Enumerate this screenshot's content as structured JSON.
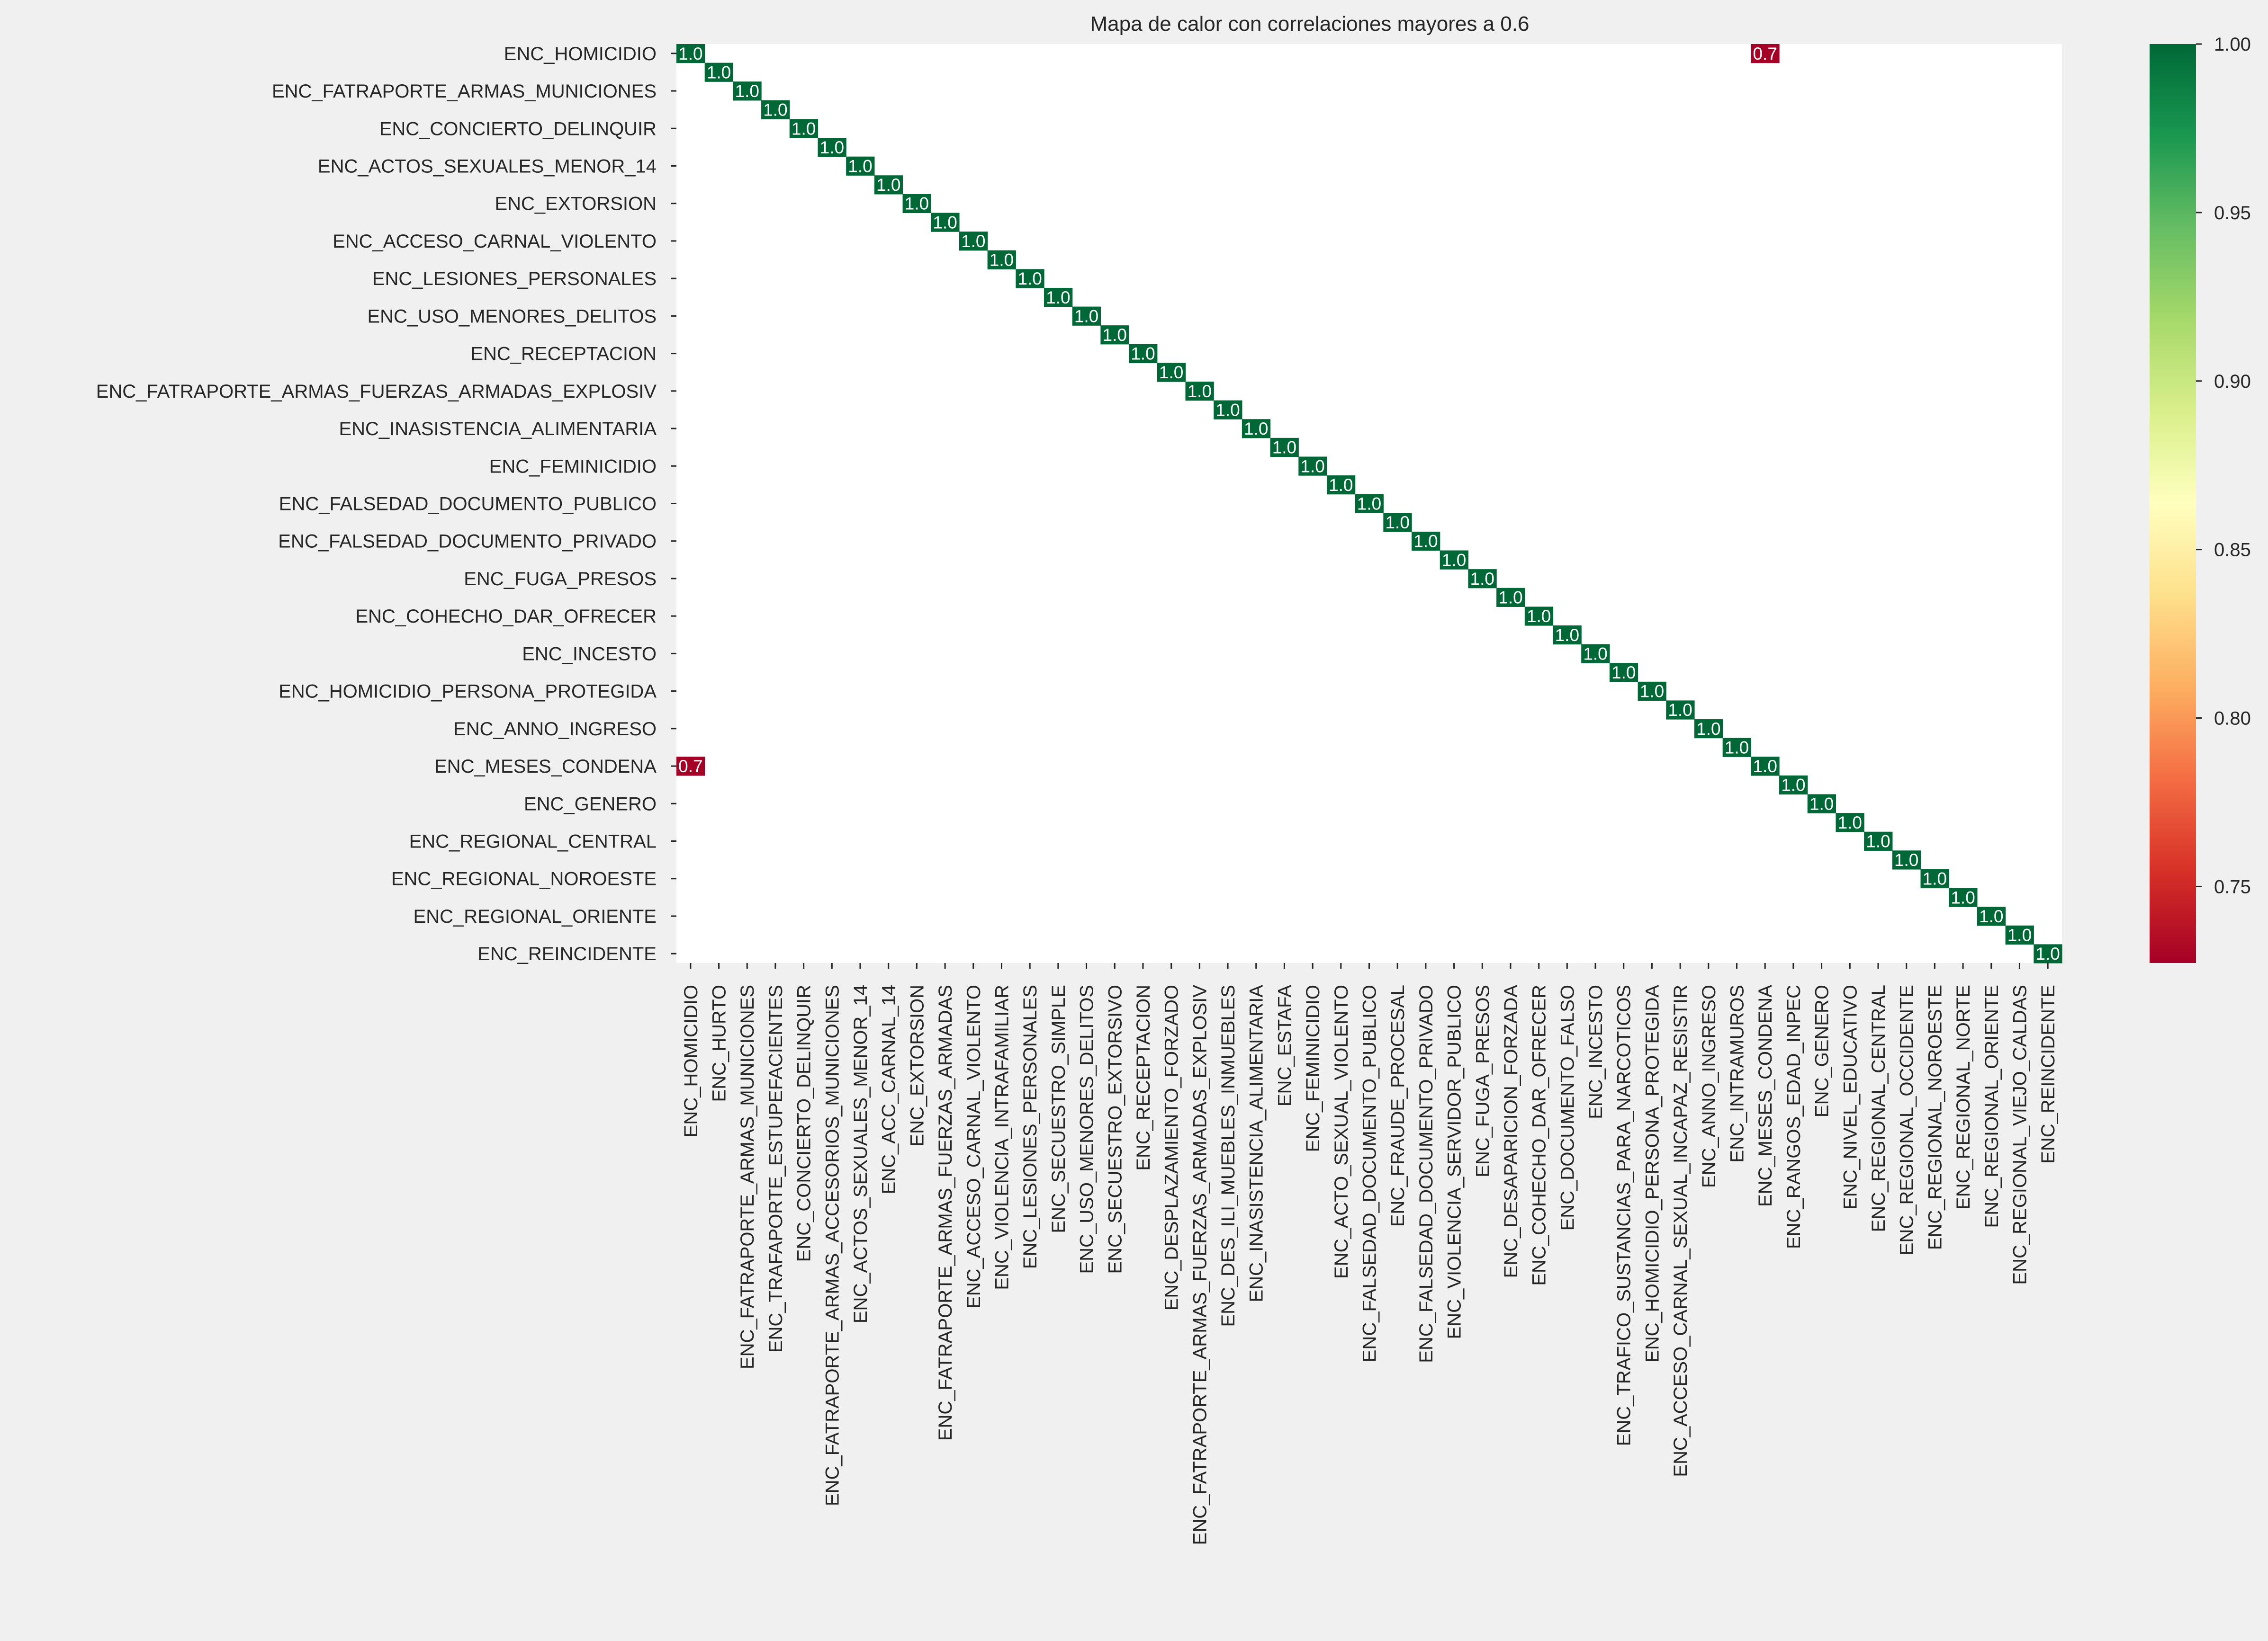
{
  "chart_data": {
    "type": "heatmap",
    "title": "Mapa de calor con correlaciones mayores a 0.6",
    "xlabel": "",
    "ylabel": "",
    "n": 49,
    "variables": [
      "ENC_HOMICIDIO",
      "ENC_HURTO",
      "ENC_FATRAPORTE_ARMAS_MUNICIONES",
      "ENC_TRAFAPORTE_ESTUPEFACIENTES",
      "ENC_CONCIERTO_DELINQUIR",
      "ENC_FATRAPORTE_ARMAS_ACCESORIOS_MUNICIONES",
      "ENC_ACTOS_SEXUALES_MENOR_14",
      "ENC_ACC_CARNAL_14",
      "ENC_EXTORSION",
      "ENC_FATRAPORTE_ARMAS_FUERZAS_ARMADAS",
      "ENC_ACCESO_CARNAL_VIOLENTO",
      "ENC_VIOLENCIA_INTRAFAMILIAR",
      "ENC_LESIONES_PERSONALES",
      "ENC_SECUESTRO_SIMPLE",
      "ENC_USO_MENORES_DELITOS",
      "ENC_SECUESTRO_EXTORSIVO",
      "ENC_RECEPTACION",
      "ENC_DESPLAZAMIENTO_FORZADO",
      "ENC_FATRAPORTE_ARMAS_FUERZAS_ARMADAS_EXPLOSIV",
      "ENC_DES_ILI_MUEBLES_INMUEBLES",
      "ENC_INASISTENCIA_ALIMENTARIA",
      "ENC_ESTAFA",
      "ENC_FEMINICIDIO",
      "ENC_ACTO_SEXUAL_VIOLENTO",
      "ENC_FALSEDAD_DOCUMENTO_PUBLICO",
      "ENC_FRAUDE_PROCESAL",
      "ENC_FALSEDAD_DOCUMENTO_PRIVADO",
      "ENC_VIOLENCIA_SERVIDOR_PUBLICO",
      "ENC_FUGA_PRESOS",
      "ENC_DESAPARICION_FORZADA",
      "ENC_COHECHO_DAR_OFRECER",
      "ENC_DOCUMENTO_FALSO",
      "ENC_INCESTO",
      "ENC_TRAFICO_SUSTANCIAS_PARA_NARCOTICOS",
      "ENC_HOMICIDIO_PERSONA_PROTEGIDA",
      "ENC_ACCESO_CARNAL_SEXUAL_INCAPAZ_RESISTIR",
      "ENC_ANNO_INGRESO",
      "ENC_INTRAMUROS",
      "ENC_MESES_CONDENA",
      "ENC_RANGOS_EDAD_INPEC",
      "ENC_GENERO",
      "ENC_NIVEL_EDUCATIVO",
      "ENC_REGIONAL_CENTRAL",
      "ENC_REGIONAL_OCCIDENTE",
      "ENC_REGIONAL_NOROESTE",
      "ENC_REGIONAL_NORTE",
      "ENC_REGIONAL_ORIENTE",
      "ENC_REGIONAL_VIEJO_CALDAS",
      "ENC_REINCIDENTE"
    ],
    "y_tick_labels": [
      "ENC_HOMICIDIO",
      "ENC_FATRAPORTE_ARMAS_MUNICIONES",
      "ENC_CONCIERTO_DELINQUIR",
      "ENC_ACTOS_SEXUALES_MENOR_14",
      "ENC_EXTORSION",
      "ENC_ACCESO_CARNAL_VIOLENTO",
      "ENC_LESIONES_PERSONALES",
      "ENC_USO_MENORES_DELITOS",
      "ENC_RECEPTACION",
      "ENC_FATRAPORTE_ARMAS_FUERZAS_ARMADAS_EXPLOSIV",
      "ENC_INASISTENCIA_ALIMENTARIA",
      "ENC_FEMINICIDIO",
      "ENC_FALSEDAD_DOCUMENTO_PUBLICO",
      "ENC_FALSEDAD_DOCUMENTO_PRIVADO",
      "ENC_FUGA_PRESOS",
      "ENC_COHECHO_DAR_OFRECER",
      "ENC_INCESTO",
      "ENC_HOMICIDIO_PERSONA_PROTEGIDA",
      "ENC_ANNO_INGRESO",
      "ENC_MESES_CONDENA",
      "ENC_GENERO",
      "ENC_REGIONAL_CENTRAL",
      "ENC_REGIONAL_NOROESTE",
      "ENC_REGIONAL_ORIENTE",
      "ENC_REINCIDENTE"
    ],
    "cells": [
      {
        "row": 0,
        "col": 0,
        "value": 1.0,
        "label": "1.0"
      },
      {
        "row": 1,
        "col": 1,
        "value": 1.0,
        "label": "1.0"
      },
      {
        "row": 2,
        "col": 2,
        "value": 1.0,
        "label": "1.0"
      },
      {
        "row": 3,
        "col": 3,
        "value": 1.0,
        "label": "1.0"
      },
      {
        "row": 4,
        "col": 4,
        "value": 1.0,
        "label": "1.0"
      },
      {
        "row": 5,
        "col": 5,
        "value": 1.0,
        "label": "1.0"
      },
      {
        "row": 6,
        "col": 6,
        "value": 1.0,
        "label": "1.0"
      },
      {
        "row": 7,
        "col": 7,
        "value": 1.0,
        "label": "1.0"
      },
      {
        "row": 8,
        "col": 8,
        "value": 1.0,
        "label": "1.0"
      },
      {
        "row": 9,
        "col": 9,
        "value": 1.0,
        "label": "1.0"
      },
      {
        "row": 10,
        "col": 10,
        "value": 1.0,
        "label": "1.0"
      },
      {
        "row": 11,
        "col": 11,
        "value": 1.0,
        "label": "1.0"
      },
      {
        "row": 12,
        "col": 12,
        "value": 1.0,
        "label": "1.0"
      },
      {
        "row": 13,
        "col": 13,
        "value": 1.0,
        "label": "1.0"
      },
      {
        "row": 14,
        "col": 14,
        "value": 1.0,
        "label": "1.0"
      },
      {
        "row": 15,
        "col": 15,
        "value": 1.0,
        "label": "1.0"
      },
      {
        "row": 16,
        "col": 16,
        "value": 1.0,
        "label": "1.0"
      },
      {
        "row": 17,
        "col": 17,
        "value": 1.0,
        "label": "1.0"
      },
      {
        "row": 18,
        "col": 18,
        "value": 1.0,
        "label": "1.0"
      },
      {
        "row": 19,
        "col": 19,
        "value": 1.0,
        "label": "1.0"
      },
      {
        "row": 20,
        "col": 20,
        "value": 1.0,
        "label": "1.0"
      },
      {
        "row": 21,
        "col": 21,
        "value": 1.0,
        "label": "1.0"
      },
      {
        "row": 22,
        "col": 22,
        "value": 1.0,
        "label": "1.0"
      },
      {
        "row": 23,
        "col": 23,
        "value": 1.0,
        "label": "1.0"
      },
      {
        "row": 24,
        "col": 24,
        "value": 1.0,
        "label": "1.0"
      },
      {
        "row": 25,
        "col": 25,
        "value": 1.0,
        "label": "1.0"
      },
      {
        "row": 26,
        "col": 26,
        "value": 1.0,
        "label": "1.0"
      },
      {
        "row": 27,
        "col": 27,
        "value": 1.0,
        "label": "1.0"
      },
      {
        "row": 28,
        "col": 28,
        "value": 1.0,
        "label": "1.0"
      },
      {
        "row": 29,
        "col": 29,
        "value": 1.0,
        "label": "1.0"
      },
      {
        "row": 30,
        "col": 30,
        "value": 1.0,
        "label": "1.0"
      },
      {
        "row": 31,
        "col": 31,
        "value": 1.0,
        "label": "1.0"
      },
      {
        "row": 32,
        "col": 32,
        "value": 1.0,
        "label": "1.0"
      },
      {
        "row": 33,
        "col": 33,
        "value": 1.0,
        "label": "1.0"
      },
      {
        "row": 34,
        "col": 34,
        "value": 1.0,
        "label": "1.0"
      },
      {
        "row": 35,
        "col": 35,
        "value": 1.0,
        "label": "1.0"
      },
      {
        "row": 36,
        "col": 36,
        "value": 1.0,
        "label": "1.0"
      },
      {
        "row": 37,
        "col": 37,
        "value": 1.0,
        "label": "1.0"
      },
      {
        "row": 38,
        "col": 38,
        "value": 1.0,
        "label": "1.0"
      },
      {
        "row": 39,
        "col": 39,
        "value": 1.0,
        "label": "1.0"
      },
      {
        "row": 40,
        "col": 40,
        "value": 1.0,
        "label": "1.0"
      },
      {
        "row": 41,
        "col": 41,
        "value": 1.0,
        "label": "1.0"
      },
      {
        "row": 42,
        "col": 42,
        "value": 1.0,
        "label": "1.0"
      },
      {
        "row": 43,
        "col": 43,
        "value": 1.0,
        "label": "1.0"
      },
      {
        "row": 44,
        "col": 44,
        "value": 1.0,
        "label": "1.0"
      },
      {
        "row": 45,
        "col": 45,
        "value": 1.0,
        "label": "1.0"
      },
      {
        "row": 46,
        "col": 46,
        "value": 1.0,
        "label": "1.0"
      },
      {
        "row": 47,
        "col": 47,
        "value": 1.0,
        "label": "1.0"
      },
      {
        "row": 48,
        "col": 48,
        "value": 1.0,
        "label": "1.0"
      },
      {
        "row": 0,
        "col": 38,
        "value": 0.7,
        "label": "0.7"
      },
      {
        "row": 38,
        "col": 0,
        "value": 0.7,
        "label": "0.7"
      }
    ],
    "colorbar": {
      "colormap": "RdYlGn",
      "vmin": 0.7273,
      "vmax": 1.0,
      "ticks": [
        0.75,
        0.8,
        0.85,
        0.9,
        0.95,
        1.0
      ],
      "tick_labels": [
        "0.75",
        "0.80",
        "0.85",
        "0.90",
        "0.95",
        "1.00"
      ],
      "stops": [
        {
          "v": 0.0,
          "color": "#a50026"
        },
        {
          "v": 0.1,
          "color": "#d73027"
        },
        {
          "v": 0.2,
          "color": "#f46d43"
        },
        {
          "v": 0.3,
          "color": "#fdae61"
        },
        {
          "v": 0.4,
          "color": "#fee08b"
        },
        {
          "v": 0.5,
          "color": "#ffffbf"
        },
        {
          "v": 0.6,
          "color": "#d9ef8b"
        },
        {
          "v": 0.7,
          "color": "#a6d96a"
        },
        {
          "v": 0.8,
          "color": "#66bd63"
        },
        {
          "v": 0.9,
          "color": "#1a9850"
        },
        {
          "v": 1.0,
          "color": "#006837"
        }
      ]
    },
    "background_color": "#f0f0f0",
    "plot_background": "#ffffff",
    "annotation_color": "#ffffff",
    "grid": false,
    "legend": "colorbar-right"
  }
}
